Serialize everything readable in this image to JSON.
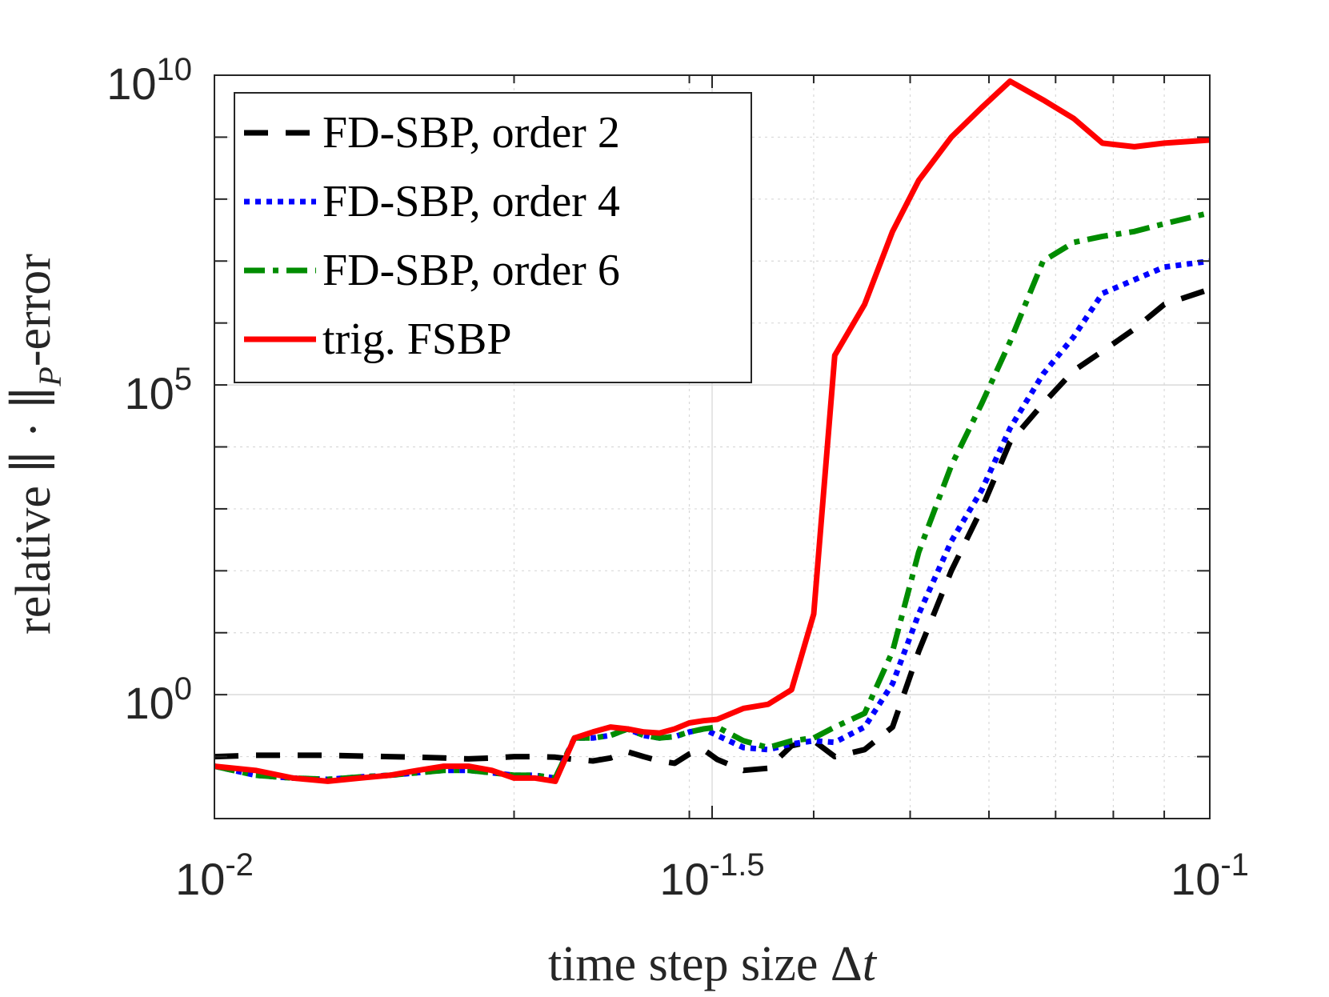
{
  "chart_data": {
    "type": "line",
    "xscale": "log",
    "yscale": "log",
    "xlim": [
      0.01,
      0.1
    ],
    "ylim": [
      0.01,
      10000000000
    ],
    "xlabel": {
      "pre": "time step size ",
      "delta": "Δ",
      "var": "t"
    },
    "ylabel": {
      "pre": "relative ",
      "norm1": "∥ · ∥",
      "sub": "P",
      "post": "-error"
    },
    "x_ticks": [
      {
        "base": "10",
        "exp": "-2",
        "value": 0.01
      },
      {
        "base": "10",
        "exp": "-1.5",
        "value": 0.0316228
      },
      {
        "base": "10",
        "exp": "-1",
        "value": 0.1
      }
    ],
    "y_ticks": [
      {
        "base": "10",
        "exp": "0",
        "value": 1
      },
      {
        "base": "10",
        "exp": "5",
        "value": 100000
      },
      {
        "base": "10",
        "exp": "10",
        "value": 10000000000
      }
    ],
    "grid": true,
    "legend_position": "top-left",
    "x": [
      0.01,
      0.011,
      0.012,
      0.013,
      0.014,
      0.015,
      0.016,
      0.017,
      0.018,
      0.019,
      0.02,
      0.021,
      0.022,
      0.023,
      0.024,
      0.025,
      0.026,
      0.027,
      0.028,
      0.029,
      0.03,
      0.031,
      0.032,
      0.034,
      0.036,
      0.038,
      0.04,
      0.042,
      0.045,
      0.048,
      0.051,
      0.055,
      0.059,
      0.063,
      0.068,
      0.073,
      0.078,
      0.084,
      0.09,
      0.1
    ],
    "series": [
      {
        "name": "FD-SBP, order 2",
        "color": "#000000",
        "style": "dashed",
        "values": [
          0.1,
          0.105,
          0.105,
          0.105,
          0.102,
          0.1,
          0.098,
          0.095,
          0.092,
          0.095,
          0.1,
          0.1,
          0.098,
          0.09,
          0.085,
          0.095,
          0.12,
          0.1,
          0.085,
          0.078,
          0.11,
          0.13,
          0.09,
          0.06,
          0.065,
          0.15,
          0.18,
          0.1,
          0.13,
          0.3,
          5,
          100,
          1000,
          12000,
          50000,
          170000,
          350000,
          800000,
          2000000,
          3500000
        ]
      },
      {
        "name": "FD-SBP, order 4",
        "color": "#0000ff",
        "style": "dotted",
        "values": [
          0.07,
          0.05,
          0.045,
          0.043,
          0.047,
          0.05,
          0.055,
          0.06,
          0.06,
          0.055,
          0.05,
          0.05,
          0.045,
          0.2,
          0.2,
          0.22,
          0.28,
          0.22,
          0.2,
          0.21,
          0.25,
          0.28,
          0.22,
          0.14,
          0.13,
          0.16,
          0.18,
          0.17,
          0.3,
          1.5,
          20,
          300,
          2000,
          20000,
          150000,
          600000,
          3000000,
          5000000,
          8000000,
          10000000
        ]
      },
      {
        "name": "FD-SBP, order 6",
        "color": "#008c00",
        "style": "dashdot",
        "values": [
          0.07,
          0.05,
          0.045,
          0.043,
          0.047,
          0.05,
          0.055,
          0.06,
          0.06,
          0.055,
          0.05,
          0.05,
          0.045,
          0.2,
          0.2,
          0.22,
          0.28,
          0.22,
          0.2,
          0.21,
          0.25,
          0.28,
          0.3,
          0.18,
          0.14,
          0.18,
          0.2,
          0.3,
          0.5,
          5,
          200,
          5000,
          50000,
          500000,
          10000000,
          20000000,
          25000000,
          30000000,
          40000000,
          60000000
        ]
      },
      {
        "name": "trig. FSBP",
        "color": "#ff0000",
        "style": "solid",
        "values": [
          0.07,
          0.06,
          0.045,
          0.04,
          0.045,
          0.05,
          0.06,
          0.07,
          0.07,
          0.06,
          0.045,
          0.045,
          0.04,
          0.2,
          0.25,
          0.3,
          0.28,
          0.25,
          0.24,
          0.28,
          0.35,
          0.38,
          0.4,
          0.6,
          0.7,
          1.2,
          20,
          300000,
          2000000,
          30000000,
          200000000,
          1000000000,
          3000000000,
          8000000000,
          4000000000,
          2000000000,
          800000000,
          700000000,
          800000000,
          900000000
        ]
      }
    ]
  }
}
